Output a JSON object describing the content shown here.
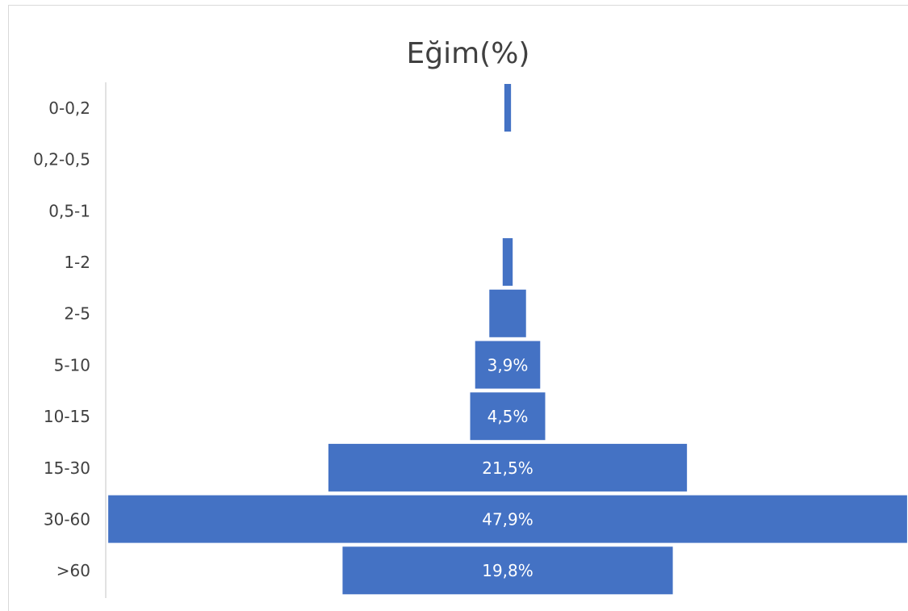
{
  "chart_data": {
    "type": "bar",
    "orientation": "horizontal-funnel",
    "title": "Eğim(%)",
    "xlabel": "",
    "ylabel": "",
    "categories": [
      "0-0,2",
      "0,2-0,5",
      "0,5-1",
      "1-2",
      "2-5",
      "5-10",
      "10-15",
      "15-30",
      "30-60",
      ">60"
    ],
    "values": [
      0.4,
      0,
      0,
      0.6,
      2.2,
      3.9,
      4.5,
      21.5,
      47.9,
      19.8
    ],
    "data_labels": [
      "",
      "",
      "",
      "",
      "",
      "3,9%",
      "4,5%",
      "21,5%",
      "47,9%",
      "19,8%"
    ],
    "xlim": [
      0,
      48.2
    ],
    "grid": false,
    "legend": "none",
    "colors": {
      "bar": "#4472c4",
      "text": "#404040",
      "axis": "#d9d9d9",
      "label": "#ffffff"
    }
  }
}
